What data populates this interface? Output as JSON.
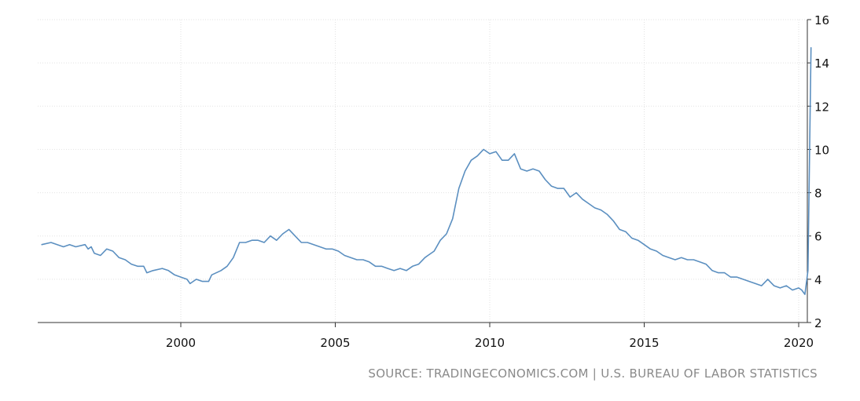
{
  "source": "SOURCE: TRADINGECONOMICS.COM | U.S. BUREAU OF LABOR STATISTICS",
  "colors": {
    "line": "#5b8fc0",
    "grid": "#e2e2e2",
    "axis": "#333333"
  },
  "chart_data": {
    "type": "line",
    "title": "",
    "xlabel": "",
    "ylabel": "",
    "xlim": [
      1995.5,
      2020.4
    ],
    "ylim": [
      2,
      16
    ],
    "x_ticks": [
      2000,
      2005,
      2010,
      2015,
      2020
    ],
    "y_ticks": [
      2,
      4,
      6,
      8,
      10,
      12,
      14,
      16
    ],
    "y_axis_position": "right",
    "grid": true,
    "legend": "none",
    "series": [
      {
        "points": [
          [
            1995.5,
            5.6
          ],
          [
            1995.8,
            5.7
          ],
          [
            1996.0,
            5.6
          ],
          [
            1996.2,
            5.5
          ],
          [
            1996.4,
            5.6
          ],
          [
            1996.6,
            5.5
          ],
          [
            1996.9,
            5.6
          ],
          [
            1997.0,
            5.4
          ],
          [
            1997.1,
            5.5
          ],
          [
            1997.2,
            5.2
          ],
          [
            1997.4,
            5.1
          ],
          [
            1997.6,
            5.4
          ],
          [
            1997.8,
            5.3
          ],
          [
            1998.0,
            5.0
          ],
          [
            1998.2,
            4.9
          ],
          [
            1998.4,
            4.7
          ],
          [
            1998.6,
            4.6
          ],
          [
            1998.8,
            4.6
          ],
          [
            1998.9,
            4.3
          ],
          [
            1999.1,
            4.4
          ],
          [
            1999.4,
            4.5
          ],
          [
            1999.6,
            4.4
          ],
          [
            1999.8,
            4.2
          ],
          [
            2000.0,
            4.1
          ],
          [
            2000.2,
            4.0
          ],
          [
            2000.3,
            3.8
          ],
          [
            2000.5,
            4.0
          ],
          [
            2000.7,
            3.9
          ],
          [
            2000.9,
            3.9
          ],
          [
            2001.0,
            4.2
          ],
          [
            2001.3,
            4.4
          ],
          [
            2001.5,
            4.6
          ],
          [
            2001.7,
            5.0
          ],
          [
            2001.9,
            5.7
          ],
          [
            2002.1,
            5.7
          ],
          [
            2002.3,
            5.8
          ],
          [
            2002.5,
            5.8
          ],
          [
            2002.7,
            5.7
          ],
          [
            2002.9,
            6.0
          ],
          [
            2003.1,
            5.8
          ],
          [
            2003.3,
            6.1
          ],
          [
            2003.5,
            6.3
          ],
          [
            2003.7,
            6.0
          ],
          [
            2003.9,
            5.7
          ],
          [
            2004.1,
            5.7
          ],
          [
            2004.3,
            5.6
          ],
          [
            2004.5,
            5.5
          ],
          [
            2004.7,
            5.4
          ],
          [
            2004.9,
            5.4
          ],
          [
            2005.1,
            5.3
          ],
          [
            2005.3,
            5.1
          ],
          [
            2005.5,
            5.0
          ],
          [
            2005.7,
            4.9
          ],
          [
            2005.9,
            4.9
          ],
          [
            2006.1,
            4.8
          ],
          [
            2006.3,
            4.6
          ],
          [
            2006.5,
            4.6
          ],
          [
            2006.7,
            4.5
          ],
          [
            2006.9,
            4.4
          ],
          [
            2007.1,
            4.5
          ],
          [
            2007.3,
            4.4
          ],
          [
            2007.5,
            4.6
          ],
          [
            2007.7,
            4.7
          ],
          [
            2007.9,
            5.0
          ],
          [
            2008.0,
            5.1
          ],
          [
            2008.2,
            5.3
          ],
          [
            2008.4,
            5.8
          ],
          [
            2008.6,
            6.1
          ],
          [
            2008.8,
            6.8
          ],
          [
            2009.0,
            8.2
          ],
          [
            2009.2,
            9.0
          ],
          [
            2009.4,
            9.5
          ],
          [
            2009.6,
            9.7
          ],
          [
            2009.8,
            10.0
          ],
          [
            2010.0,
            9.8
          ],
          [
            2010.2,
            9.9
          ],
          [
            2010.4,
            9.5
          ],
          [
            2010.6,
            9.5
          ],
          [
            2010.8,
            9.8
          ],
          [
            2011.0,
            9.1
          ],
          [
            2011.2,
            9.0
          ],
          [
            2011.4,
            9.1
          ],
          [
            2011.6,
            9.0
          ],
          [
            2011.8,
            8.6
          ],
          [
            2012.0,
            8.3
          ],
          [
            2012.2,
            8.2
          ],
          [
            2012.4,
            8.2
          ],
          [
            2012.6,
            7.8
          ],
          [
            2012.8,
            8.0
          ],
          [
            2013.0,
            7.7
          ],
          [
            2013.2,
            7.5
          ],
          [
            2013.4,
            7.3
          ],
          [
            2013.6,
            7.2
          ],
          [
            2013.8,
            7.0
          ],
          [
            2014.0,
            6.7
          ],
          [
            2014.2,
            6.3
          ],
          [
            2014.4,
            6.2
          ],
          [
            2014.6,
            5.9
          ],
          [
            2014.8,
            5.8
          ],
          [
            2015.0,
            5.6
          ],
          [
            2015.2,
            5.4
          ],
          [
            2015.4,
            5.3
          ],
          [
            2015.6,
            5.1
          ],
          [
            2015.8,
            5.0
          ],
          [
            2016.0,
            4.9
          ],
          [
            2016.2,
            5.0
          ],
          [
            2016.4,
            4.9
          ],
          [
            2016.6,
            4.9
          ],
          [
            2016.8,
            4.8
          ],
          [
            2017.0,
            4.7
          ],
          [
            2017.2,
            4.4
          ],
          [
            2017.4,
            4.3
          ],
          [
            2017.6,
            4.3
          ],
          [
            2017.8,
            4.1
          ],
          [
            2018.0,
            4.1
          ],
          [
            2018.2,
            4.0
          ],
          [
            2018.4,
            3.9
          ],
          [
            2018.6,
            3.8
          ],
          [
            2018.8,
            3.7
          ],
          [
            2019.0,
            4.0
          ],
          [
            2019.2,
            3.7
          ],
          [
            2019.4,
            3.6
          ],
          [
            2019.6,
            3.7
          ],
          [
            2019.8,
            3.5
          ],
          [
            2020.0,
            3.6
          ],
          [
            2020.1,
            3.5
          ],
          [
            2020.2,
            3.3
          ],
          [
            2020.3,
            4.4
          ],
          [
            2020.4,
            14.7
          ]
        ]
      }
    ]
  }
}
